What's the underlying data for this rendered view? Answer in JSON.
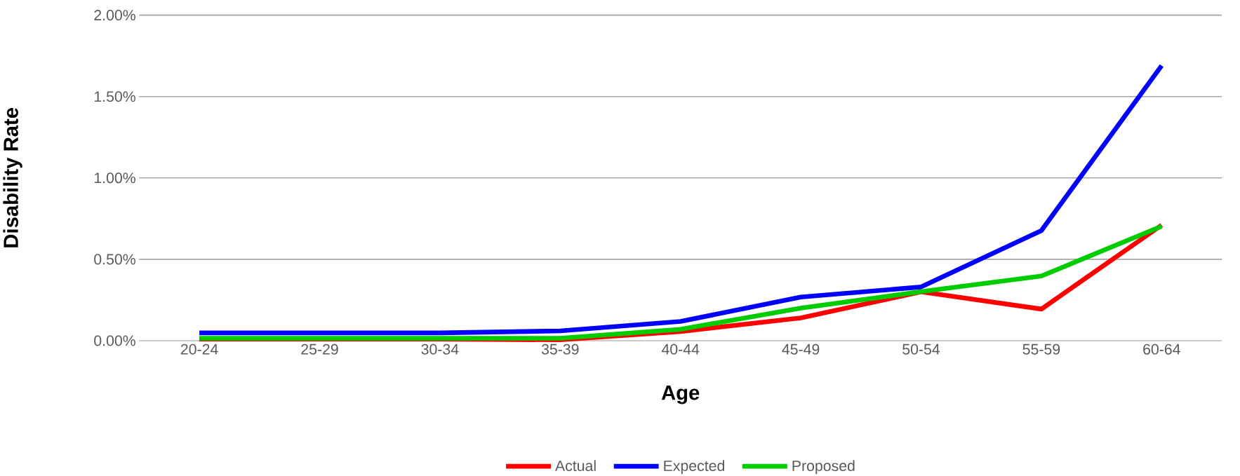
{
  "chart_data": {
    "type": "line",
    "xlabel": "Age",
    "ylabel": "Disability Rate",
    "categories": [
      "20-24",
      "25-29",
      "30-34",
      "35-39",
      "40-44",
      "45-49",
      "50-54",
      "55-59",
      "60-64"
    ],
    "series": [
      {
        "name": "Actual",
        "color": "#ff0000",
        "values": [
          0.01,
          0.01,
          0.01,
          0.005,
          0.056,
          0.14,
          0.3,
          0.194,
          0.71
        ]
      },
      {
        "name": "Expected",
        "color": "#0000ff",
        "values": [
          0.048,
          0.048,
          0.048,
          0.06,
          0.118,
          0.268,
          0.33,
          0.676,
          1.69
        ]
      },
      {
        "name": "Proposed",
        "color": "#00cc00",
        "values": [
          0.015,
          0.015,
          0.015,
          0.015,
          0.07,
          0.2,
          0.301,
          0.397,
          0.703
        ]
      }
    ],
    "ylim": [
      0,
      2
    ],
    "yticks": [
      {
        "value": 0,
        "label": "0.00%"
      },
      {
        "value": 0.5,
        "label": "0.50%"
      },
      {
        "value": 1,
        "label": "1.00%"
      },
      {
        "value": 1.5,
        "label": "1.50%"
      },
      {
        "value": 2,
        "label": "2.00%"
      }
    ],
    "grid": "y",
    "legend": "bottom"
  }
}
